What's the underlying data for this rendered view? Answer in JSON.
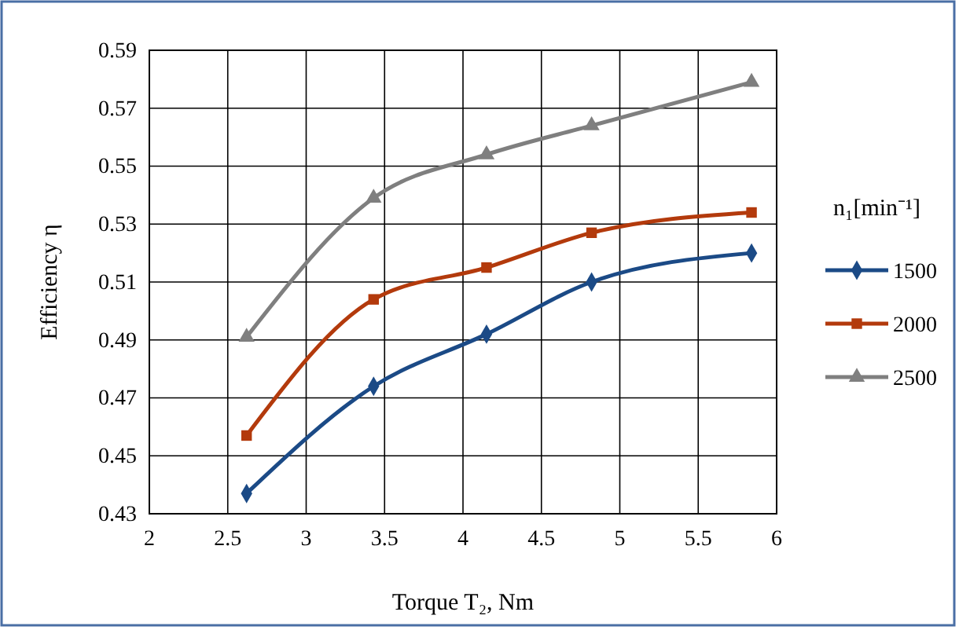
{
  "chart_data": {
    "type": "line",
    "xlabel": "Torque T₂, Nm",
    "ylabel": "Efficiency η",
    "legend_title": "n₁[min⁻¹]",
    "xlim": [
      2,
      6
    ],
    "xticks": [
      2,
      2.5,
      3,
      3.5,
      4,
      4.5,
      5,
      5.5,
      6
    ],
    "ylim": [
      0.43,
      0.59
    ],
    "yticks": [
      0.43,
      0.45,
      0.47,
      0.49,
      0.51,
      0.53,
      0.55,
      0.57,
      0.59
    ],
    "grid": true,
    "legend": "right",
    "series": [
      {
        "name": "1500",
        "color": "#1b4a86",
        "marker": "diamond",
        "x": [
          2.62,
          3.43,
          4.15,
          4.82,
          5.84
        ],
        "values": [
          0.437,
          0.474,
          0.492,
          0.51,
          0.52
        ]
      },
      {
        "name": "2000",
        "color": "#b33a0c",
        "marker": "square",
        "x": [
          2.62,
          3.43,
          4.15,
          4.82,
          5.84
        ],
        "values": [
          0.457,
          0.504,
          0.515,
          0.527,
          0.534
        ]
      },
      {
        "name": "2500",
        "color": "#7f7f7f",
        "marker": "triangle",
        "x": [
          2.62,
          3.43,
          4.15,
          4.82,
          5.84
        ],
        "values": [
          0.491,
          0.539,
          0.554,
          0.564,
          0.579
        ]
      }
    ]
  }
}
